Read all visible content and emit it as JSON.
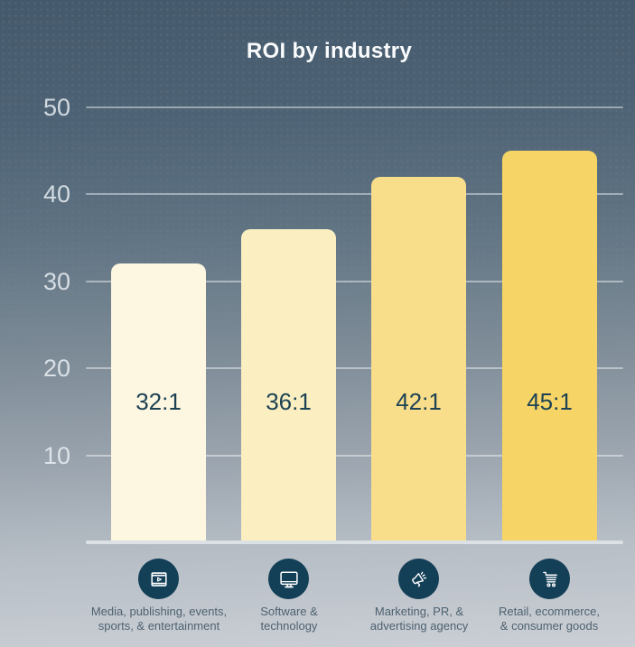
{
  "title": "ROI by industry",
  "colors": {
    "background_top": "#44596b",
    "background_bottom": "#cbcfd5",
    "title_text": "#fafbfc",
    "axis_tick_text": "#e9eff3",
    "gridline": "rgba(255,255,255,0.44)",
    "baseline": "#dce1e5",
    "bar_value_text": "#1d4254",
    "icon_circle": "#133f57",
    "icon_glyph": "#ffffff",
    "category_text": "#4d6170"
  },
  "y_axis": {
    "ticks": [
      "50",
      "40",
      "30",
      "20",
      "10"
    ]
  },
  "chart_data": {
    "type": "bar",
    "title": "ROI by industry",
    "categories": [
      "Media, publishing, events, sports, & entertainment",
      "Software & technology",
      "Marketing, PR, & advertising agency",
      "Retail, ecommerce, & consumer goods"
    ],
    "values": [
      32,
      36,
      42,
      45
    ],
    "value_labels": [
      "32:1",
      "36:1",
      "42:1",
      "45:1"
    ],
    "bar_colors": [
      "#fdf6e0",
      "#fbefc1",
      "#f8de8a",
      "#f6d566"
    ],
    "y_ticks": [
      50,
      40,
      30,
      20,
      10
    ],
    "ylim": [
      0,
      52
    ],
    "grid": true,
    "legend_position": "none",
    "xlabel": "",
    "ylabel": "",
    "icons": [
      "film-play",
      "monitor",
      "megaphone",
      "shopping-cart"
    ]
  },
  "bars": [
    {
      "value_label": "32:1",
      "lines": [
        "Media, publishing, events,",
        "sports, & entertainment"
      ]
    },
    {
      "value_label": "36:1",
      "lines": [
        "Software &",
        "technology"
      ]
    },
    {
      "value_label": "42:1",
      "lines": [
        "Marketing, PR, &",
        "advertising agency"
      ]
    },
    {
      "value_label": "45:1",
      "lines": [
        "Retail, ecommerce,",
        "& consumer goods"
      ]
    }
  ]
}
